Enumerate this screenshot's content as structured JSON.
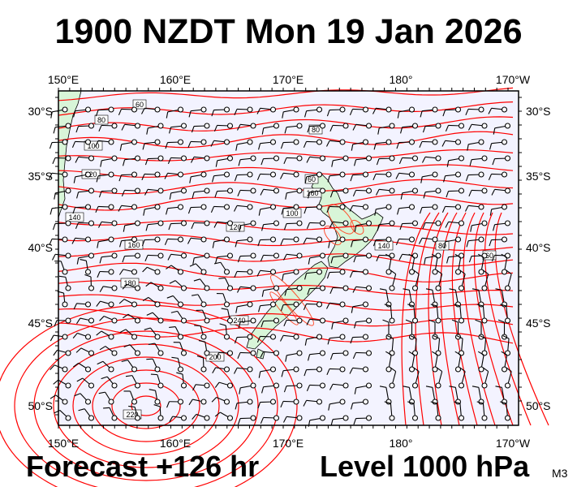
{
  "title": "1900 NZDT Mon 19 Jan 2026",
  "forecast_label": "Forecast +126 hr",
  "level_label": "Level 1000 hPa",
  "model_tag": "M3",
  "longitude_labels": [
    "150°E",
    "160°E",
    "170°E",
    "180°",
    "170°W"
  ],
  "latitude_labels": [
    "30°S",
    "35°S",
    "40°S",
    "45°S",
    "50°S"
  ],
  "contour_labels": [
    "60",
    "80",
    "100",
    "120",
    "140",
    "160",
    "180",
    "200",
    "220",
    "240",
    "80",
    "60",
    "100",
    "120",
    "140",
    "80",
    "60",
    "160"
  ],
  "colors": {
    "ocean": "#f3f3ff",
    "land": "#d8f5d8",
    "contour": "#ff0000",
    "terrain_contour": "#ff5030",
    "wind_barb": "#000000"
  }
}
